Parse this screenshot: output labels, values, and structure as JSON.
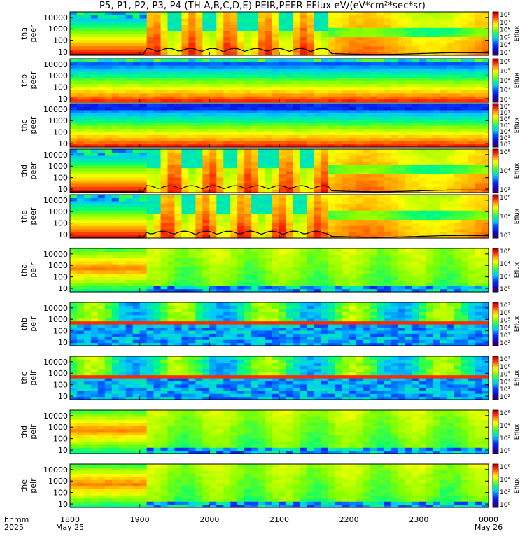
{
  "chart_data": {
    "type": "heatmap",
    "title": "P5, P1, P2, P3, P4 (TH-A,B,C,D,E) PEIR,PEER EFlux eV/(eV*cm²*sec*sr)",
    "x": {
      "ticks": [
        "1800",
        "1900",
        "2000",
        "2100",
        "2200",
        "2300",
        "0000"
      ],
      "dates": [
        "May 25",
        "",
        "",
        "",
        "",
        "",
        "May 26"
      ],
      "label_hhmm": "hhmm",
      "label_year": "2025",
      "range_hours": [
        18,
        24
      ]
    },
    "y": {
      "scale": "log",
      "ticks": [
        "10",
        "100",
        "1000",
        "10000"
      ],
      "range_eV": [
        5,
        30000
      ]
    },
    "colorbar_label": "Eflux",
    "panels": [
      {
        "probe": "tha",
        "species": "peer",
        "cb_ticks": [
          "10³",
          "10⁴",
          "10⁵",
          "10⁶",
          "10⁷",
          "10⁸"
        ],
        "cb_range": [
          3,
          8
        ],
        "has_trace": true
      },
      {
        "probe": "thb",
        "species": "peer",
        "cb_ticks": [
          "10²",
          "10³",
          "10⁴",
          "10⁵",
          "10⁶"
        ],
        "cb_range": [
          2,
          6
        ],
        "has_trace": false
      },
      {
        "probe": "thc",
        "species": "peer",
        "cb_ticks": [
          "10²",
          "10³",
          "10⁴",
          "10⁵",
          "10⁶",
          "10⁷",
          "10⁸"
        ],
        "cb_range": [
          2,
          8
        ],
        "has_trace": false
      },
      {
        "probe": "thd",
        "species": "peer",
        "cb_ticks": [
          "10²",
          "10⁴",
          "10⁶"
        ],
        "cb_range": [
          1,
          7
        ],
        "has_trace": true
      },
      {
        "probe": "the",
        "species": "peer",
        "cb_ticks": [
          "10²",
          "10⁴",
          "10⁶"
        ],
        "cb_range": [
          1,
          7
        ],
        "has_trace": true
      },
      {
        "probe": "tha",
        "species": "peir",
        "cb_ticks": [
          "10⁰",
          "10²",
          "10⁴",
          "10⁶"
        ],
        "cb_range": [
          0,
          6
        ],
        "has_trace": false
      },
      {
        "probe": "thb",
        "species": "peir",
        "cb_ticks": [
          "10²",
          "10³",
          "10⁴",
          "10⁵",
          "10⁶",
          "10⁷"
        ],
        "cb_range": [
          2,
          7
        ],
        "has_trace": false
      },
      {
        "probe": "thc",
        "species": "peir",
        "cb_ticks": [
          "10²",
          "10³",
          "10⁴",
          "10⁵",
          "10⁶",
          "10⁷"
        ],
        "cb_range": [
          2,
          7
        ],
        "has_trace": false
      },
      {
        "probe": "thd",
        "species": "peir",
        "cb_ticks": [
          "10⁰",
          "10²",
          "10⁴",
          "10⁶"
        ],
        "cb_range": [
          0,
          6
        ],
        "has_trace": false
      },
      {
        "probe": "the",
        "species": "peir",
        "cb_ticks": [
          "10⁰",
          "10²",
          "10⁴",
          "10⁶"
        ],
        "cb_range": [
          0,
          6
        ],
        "has_trace": false
      }
    ]
  }
}
